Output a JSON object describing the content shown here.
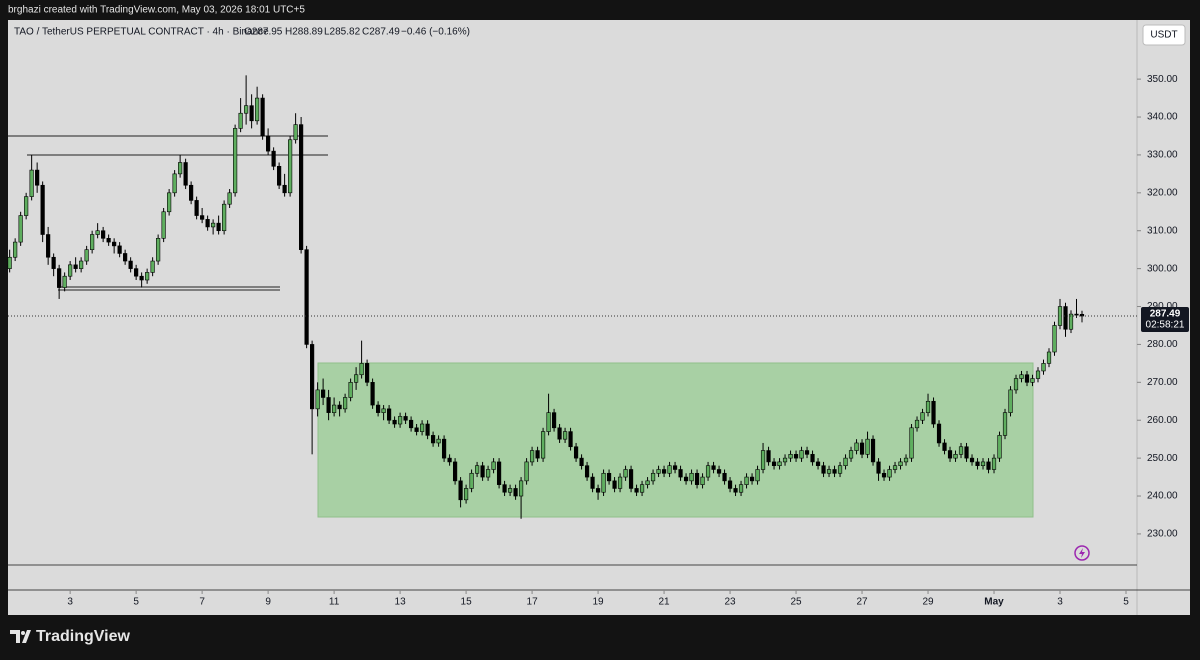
{
  "header": {
    "caption": "brghazi created with TradingView.com, May 03, 2026 18:01 UTC+5",
    "symbol": "TAO / TetherUS PERPETUAL CONTRACT · 4h · Binance",
    "open": "O287.95",
    "high": "H288.89",
    "low": "L285.82",
    "close": "C287.49",
    "change": "−0.46 (−0.16%)",
    "currency": "USDT",
    "brand": "TradingView"
  },
  "chart_data": {
    "type": "candlestick",
    "current_price": 287.49,
    "countdown": "02:58:21",
    "up_color": "#5fae5f",
    "down_color": "#000000",
    "ylim": [
      221.8,
      365.6
    ],
    "xlim": [
      -0.3,
      205
    ],
    "yticks": [
      {
        "value": 230,
        "label": "230.00"
      },
      {
        "value": 240,
        "label": "240.00"
      },
      {
        "value": 250,
        "label": "250.00"
      },
      {
        "value": 260,
        "label": "260.00"
      },
      {
        "value": 270,
        "label": "270.00"
      },
      {
        "value": 280,
        "label": "280.00"
      },
      {
        "value": 290,
        "label": "290.00"
      },
      {
        "value": 300,
        "label": "300.00"
      },
      {
        "value": 310,
        "label": "310.00"
      },
      {
        "value": 320,
        "label": "320.00"
      },
      {
        "value": 330,
        "label": "330.00"
      },
      {
        "value": 340,
        "label": "340.00"
      },
      {
        "value": 350,
        "label": "350.00"
      }
    ],
    "xticks": [
      {
        "value": 11,
        "label": "3"
      },
      {
        "value": 23,
        "label": "5"
      },
      {
        "value": 35,
        "label": "7"
      },
      {
        "value": 47,
        "label": "9"
      },
      {
        "value": 59,
        "label": "11"
      },
      {
        "value": 71,
        "label": "13"
      },
      {
        "value": 83,
        "label": "15"
      },
      {
        "value": 95,
        "label": "17"
      },
      {
        "value": 107,
        "label": "19"
      },
      {
        "value": 119,
        "label": "21"
      },
      {
        "value": 131,
        "label": "23"
      },
      {
        "value": 143,
        "label": "25"
      },
      {
        "value": 155,
        "label": "27"
      },
      {
        "value": 167,
        "label": "29"
      },
      {
        "value": 179,
        "label": "May"
      },
      {
        "value": 191,
        "label": "3"
      },
      {
        "value": 203,
        "label": "5"
      }
    ],
    "candles": [
      [
        300,
        305,
        299,
        303
      ],
      [
        303,
        308,
        302,
        307
      ],
      [
        307,
        315,
        306,
        314
      ],
      [
        314,
        320,
        313,
        319
      ],
      [
        319,
        330,
        318,
        326
      ],
      [
        326,
        328,
        320,
        322
      ],
      [
        322,
        323,
        307,
        309
      ],
      [
        309,
        311,
        301,
        303
      ],
      [
        303,
        304,
        298,
        300
      ],
      [
        300,
        301,
        292,
        295
      ],
      [
        295,
        299,
        294,
        298
      ],
      [
        298,
        302,
        297,
        301
      ],
      [
        301,
        303,
        299,
        300
      ],
      [
        300,
        303,
        299,
        302
      ],
      [
        302,
        306,
        301,
        305
      ],
      [
        305,
        310,
        304,
        309
      ],
      [
        309,
        312,
        308,
        310
      ],
      [
        310,
        311,
        307,
        308
      ],
      [
        308,
        309,
        306,
        307
      ],
      [
        307,
        308,
        304,
        306
      ],
      [
        306,
        307,
        303,
        304
      ],
      [
        304,
        305,
        301,
        302
      ],
      [
        302,
        303,
        299,
        300
      ],
      [
        300,
        301,
        297,
        298
      ],
      [
        298,
        299,
        295,
        297
      ],
      [
        297,
        300,
        296,
        299
      ],
      [
        299,
        303,
        298,
        302
      ],
      [
        302,
        309,
        301,
        308
      ],
      [
        308,
        316,
        307,
        315
      ],
      [
        315,
        321,
        314,
        320
      ],
      [
        320,
        326,
        319,
        325
      ],
      [
        325,
        330,
        324,
        328
      ],
      [
        328,
        329,
        321,
        322
      ],
      [
        322,
        323,
        317,
        318
      ],
      [
        318,
        319,
        313,
        314
      ],
      [
        314,
        316,
        312,
        313
      ],
      [
        313,
        314,
        310,
        311
      ],
      [
        311,
        313,
        309,
        312
      ],
      [
        312,
        314,
        309,
        310
      ],
      [
        310,
        318,
        309,
        317
      ],
      [
        317,
        321,
        316,
        320
      ],
      [
        320,
        338,
        319,
        337
      ],
      [
        337,
        345,
        336,
        341
      ],
      [
        341,
        351,
        338,
        343
      ],
      [
        343,
        346,
        337,
        339
      ],
      [
        339,
        348,
        338,
        345
      ],
      [
        345,
        346,
        334,
        335
      ],
      [
        335,
        337,
        330,
        331
      ],
      [
        331,
        332,
        326,
        327
      ],
      [
        327,
        328,
        321,
        322
      ],
      [
        322,
        325,
        319,
        320
      ],
      [
        320,
        335,
        319,
        334
      ],
      [
        334,
        341,
        333,
        338
      ],
      [
        338,
        340,
        304,
        305
      ],
      [
        305,
        306,
        279,
        280
      ],
      [
        280,
        281,
        251,
        263
      ],
      [
        263,
        270,
        261,
        268
      ],
      [
        268,
        271,
        264,
        266
      ],
      [
        266,
        268,
        260,
        262
      ],
      [
        262,
        266,
        261,
        264
      ],
      [
        264,
        265,
        261,
        263
      ],
      [
        263,
        267,
        262,
        266
      ],
      [
        266,
        271,
        265,
        270
      ],
      [
        270,
        274,
        268,
        272
      ],
      [
        272,
        281,
        271,
        275
      ],
      [
        275,
        276,
        269,
        270
      ],
      [
        270,
        271,
        263,
        264
      ],
      [
        264,
        265,
        261,
        262
      ],
      [
        262,
        264,
        260,
        263
      ],
      [
        263,
        264,
        259,
        260
      ],
      [
        260,
        261,
        258,
        259
      ],
      [
        259,
        262,
        258,
        261
      ],
      [
        261,
        262,
        259,
        260
      ],
      [
        260,
        261,
        257,
        258
      ],
      [
        258,
        259,
        256,
        257
      ],
      [
        257,
        260,
        256,
        259
      ],
      [
        259,
        260,
        255,
        256
      ],
      [
        256,
        257,
        253,
        254
      ],
      [
        254,
        256,
        253,
        255
      ],
      [
        255,
        256,
        249,
        250
      ],
      [
        250,
        251,
        248,
        249
      ],
      [
        249,
        250,
        243,
        244
      ],
      [
        244,
        245,
        237,
        239
      ],
      [
        239,
        243,
        238,
        242
      ],
      [
        242,
        247,
        241,
        246
      ],
      [
        246,
        249,
        245,
        248
      ],
      [
        248,
        249,
        244,
        245
      ],
      [
        245,
        248,
        244,
        247
      ],
      [
        247,
        250,
        246,
        249
      ],
      [
        249,
        250,
        242,
        243
      ],
      [
        243,
        244,
        240,
        241
      ],
      [
        241,
        243,
        240,
        242
      ],
      [
        242,
        243,
        239,
        240
      ],
      [
        240,
        245,
        234,
        244
      ],
      [
        244,
        250,
        243,
        249
      ],
      [
        249,
        253,
        248,
        252
      ],
      [
        252,
        253,
        249,
        250
      ],
      [
        250,
        258,
        249,
        257
      ],
      [
        257,
        267,
        256,
        262
      ],
      [
        262,
        263,
        257,
        258
      ],
      [
        258,
        259,
        254,
        255
      ],
      [
        255,
        258,
        254,
        257
      ],
      [
        257,
        258,
        252,
        253
      ],
      [
        253,
        254,
        249,
        250
      ],
      [
        250,
        251,
        247,
        248
      ],
      [
        248,
        249,
        244,
        245
      ],
      [
        245,
        246,
        241,
        242
      ],
      [
        242,
        243,
        239,
        241
      ],
      [
        241,
        247,
        240,
        246
      ],
      [
        246,
        247,
        243,
        244
      ],
      [
        244,
        245,
        241,
        242
      ],
      [
        242,
        246,
        241,
        245
      ],
      [
        245,
        248,
        244,
        247
      ],
      [
        247,
        248,
        241,
        242
      ],
      [
        242,
        243,
        240,
        241
      ],
      [
        241,
        244,
        240,
        243
      ],
      [
        243,
        245,
        242,
        244
      ],
      [
        244,
        247,
        243,
        246
      ],
      [
        246,
        248,
        245,
        247
      ],
      [
        247,
        248,
        245,
        246
      ],
      [
        246,
        249,
        245,
        248
      ],
      [
        248,
        249,
        246,
        247
      ],
      [
        247,
        248,
        244,
        245
      ],
      [
        245,
        246,
        243,
        244
      ],
      [
        244,
        247,
        243,
        246
      ],
      [
        246,
        247,
        242,
        243
      ],
      [
        243,
        246,
        242,
        245
      ],
      [
        245,
        249,
        244,
        248
      ],
      [
        248,
        249,
        246,
        247
      ],
      [
        247,
        248,
        245,
        246
      ],
      [
        246,
        247,
        243,
        244
      ],
      [
        244,
        245,
        241,
        242
      ],
      [
        242,
        243,
        240,
        241
      ],
      [
        241,
        244,
        240,
        243
      ],
      [
        243,
        246,
        242,
        245
      ],
      [
        245,
        246,
        243,
        244
      ],
      [
        244,
        248,
        243,
        247
      ],
      [
        247,
        254,
        246,
        252
      ],
      [
        252,
        253,
        248,
        249
      ],
      [
        249,
        250,
        247,
        248
      ],
      [
        248,
        250,
        247,
        249
      ],
      [
        249,
        251,
        248,
        250
      ],
      [
        250,
        252,
        249,
        251
      ],
      [
        251,
        252,
        249,
        250
      ],
      [
        250,
        253,
        249,
        252
      ],
      [
        252,
        253,
        250,
        251
      ],
      [
        251,
        252,
        248,
        249
      ],
      [
        249,
        250,
        247,
        248
      ],
      [
        248,
        249,
        245,
        246
      ],
      [
        246,
        248,
        245,
        247
      ],
      [
        247,
        248,
        245,
        246
      ],
      [
        246,
        249,
        245,
        248
      ],
      [
        248,
        251,
        247,
        250
      ],
      [
        250,
        253,
        249,
        252
      ],
      [
        252,
        255,
        251,
        254
      ],
      [
        254,
        255,
        250,
        251
      ],
      [
        251,
        257,
        250,
        255
      ],
      [
        255,
        256,
        248,
        249
      ],
      [
        249,
        250,
        244,
        246
      ],
      [
        246,
        247,
        244,
        245
      ],
      [
        245,
        248,
        244,
        247
      ],
      [
        247,
        249,
        246,
        248
      ],
      [
        248,
        250,
        247,
        249
      ],
      [
        249,
        251,
        248,
        250
      ],
      [
        250,
        259,
        249,
        258
      ],
      [
        258,
        261,
        257,
        260
      ],
      [
        260,
        263,
        259,
        262
      ],
      [
        262,
        267,
        261,
        265
      ],
      [
        265,
        266,
        258,
        259
      ],
      [
        259,
        260,
        253,
        254
      ],
      [
        254,
        255,
        251,
        252
      ],
      [
        252,
        253,
        249,
        250
      ],
      [
        250,
        252,
        249,
        251
      ],
      [
        251,
        254,
        250,
        253
      ],
      [
        253,
        254,
        249,
        250
      ],
      [
        250,
        251,
        248,
        249
      ],
      [
        249,
        250,
        247,
        248
      ],
      [
        248,
        250,
        247,
        249
      ],
      [
        249,
        250,
        246,
        247
      ],
      [
        247,
        251,
        246,
        250
      ],
      [
        250,
        257,
        249,
        256
      ],
      [
        256,
        263,
        255,
        262
      ],
      [
        262,
        269,
        261,
        268
      ],
      [
        268,
        272,
        267,
        271
      ],
      [
        271,
        273,
        270,
        272
      ],
      [
        272,
        273,
        269,
        270
      ],
      [
        270,
        272,
        269,
        271
      ],
      [
        271,
        274,
        270,
        273
      ],
      [
        273,
        276,
        272,
        275
      ],
      [
        275,
        279,
        274,
        278
      ],
      [
        278,
        286,
        277,
        285
      ],
      [
        285,
        292,
        284,
        290
      ],
      [
        290,
        291,
        282,
        284
      ],
      [
        284,
        289,
        283,
        288
      ],
      [
        288,
        292,
        287,
        287.95
      ],
      [
        287.95,
        288.89,
        285.82,
        287.49
      ]
    ]
  }
}
